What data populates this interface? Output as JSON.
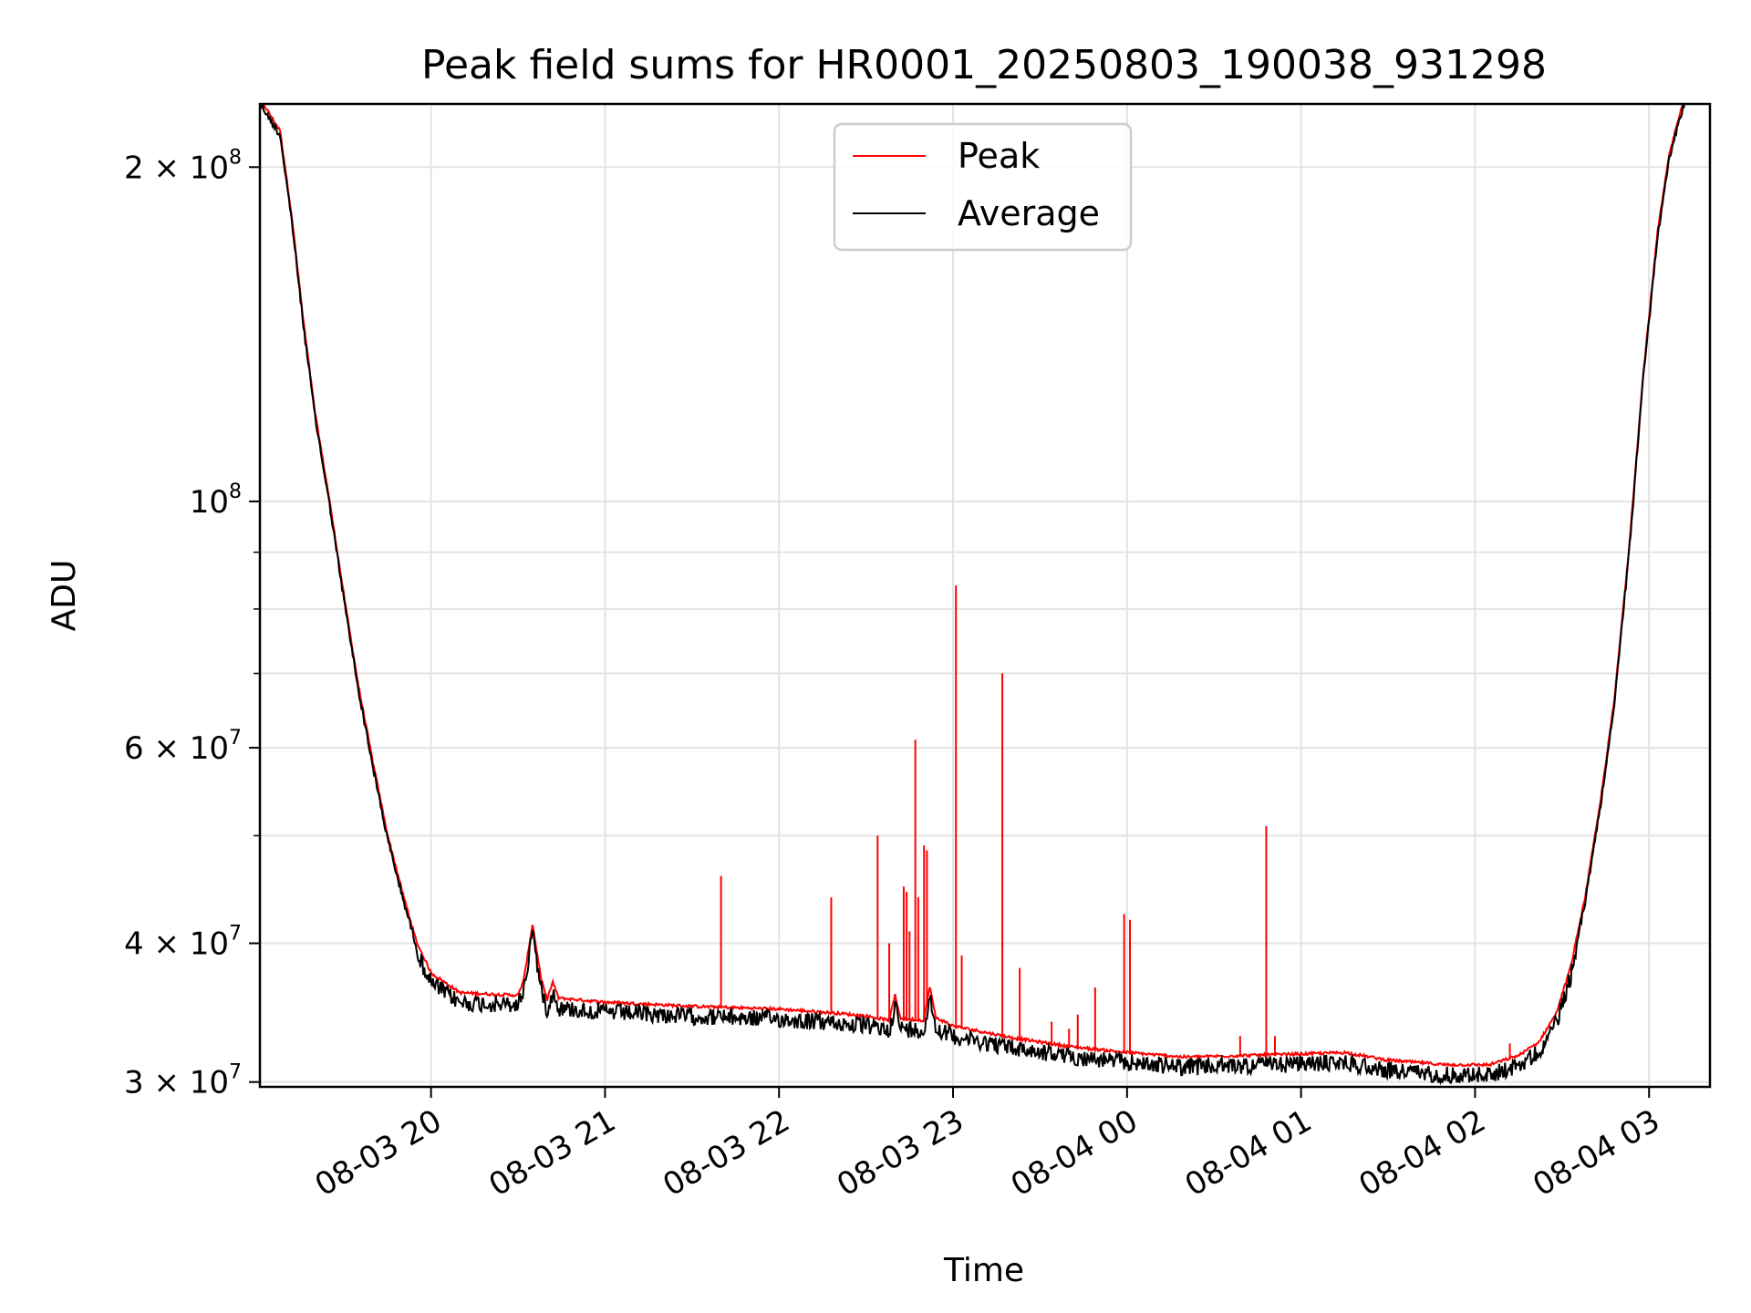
{
  "chart_data": {
    "type": "line",
    "title": "Peak field sums for HR0001_20250803_190038_931298",
    "xlabel": "Time",
    "ylabel": "ADU",
    "yscale": "log",
    "x_range": [
      "2025-08-03 19:01",
      "2025-08-04 03:21"
    ],
    "ylim": [
      29700000,
      228000000
    ],
    "grid": true,
    "legend_position": "top-center",
    "x_ticks": [
      {
        "value": "2025-08-03 20:00",
        "label": "08-03 20"
      },
      {
        "value": "2025-08-03 21:00",
        "label": "08-03 21"
      },
      {
        "value": "2025-08-03 22:00",
        "label": "08-03 22"
      },
      {
        "value": "2025-08-03 23:00",
        "label": "08-03 23"
      },
      {
        "value": "2025-08-04 00:00",
        "label": "08-04 00"
      },
      {
        "value": "2025-08-04 01:00",
        "label": "08-04 01"
      },
      {
        "value": "2025-08-04 02:00",
        "label": "08-04 02"
      },
      {
        "value": "2025-08-04 03:00",
        "label": "08-04 03"
      }
    ],
    "y_ticks": [
      {
        "value": 30000000,
        "label": "3 × 10^7",
        "base": "3 × 10",
        "exp": "7"
      },
      {
        "value": 40000000,
        "label": "4 × 10^7",
        "base": "4 × 10",
        "exp": "7"
      },
      {
        "value": 60000000,
        "label": "6 × 10^7",
        "base": "6 × 10",
        "exp": "7"
      },
      {
        "value": 100000000,
        "label": "10^8",
        "base": "10",
        "exp": "8"
      },
      {
        "value": 200000000,
        "label": "2 × 10^8",
        "base": "2 × 10",
        "exp": "8"
      }
    ],
    "y_minor_ticks": [
      50000000,
      70000000,
      80000000,
      90000000
    ],
    "series": [
      {
        "name": "Average",
        "color": "#000000",
        "points": [
          [
            "2025-08-03 19:01",
            230000000
          ],
          [
            "2025-08-03 19:08",
            215000000
          ],
          [
            "2025-08-03 19:12",
            180000000
          ],
          [
            "2025-08-03 19:16",
            145000000
          ],
          [
            "2025-08-03 19:20",
            120000000
          ],
          [
            "2025-08-03 19:25",
            100000000
          ],
          [
            "2025-08-03 19:30",
            82000000
          ],
          [
            "2025-08-03 19:35",
            68000000
          ],
          [
            "2025-08-03 19:40",
            58000000
          ],
          [
            "2025-08-03 19:45",
            50000000
          ],
          [
            "2025-08-03 19:50",
            44500000
          ],
          [
            "2025-08-03 19:55",
            40000000
          ],
          [
            "2025-08-03 20:00",
            37500000
          ],
          [
            "2025-08-03 20:10",
            36000000
          ],
          [
            "2025-08-03 20:30",
            35800000
          ],
          [
            "2025-08-03 20:32",
            37000000
          ],
          [
            "2025-08-03 20:35",
            41500000
          ],
          [
            "2025-08-03 20:38",
            37000000
          ],
          [
            "2025-08-03 20:40",
            35500000
          ],
          [
            "2025-08-03 20:42",
            36800000
          ],
          [
            "2025-08-03 20:44",
            35600000
          ],
          [
            "2025-08-03 21:00",
            35300000
          ],
          [
            "2025-08-03 21:30",
            35000000
          ],
          [
            "2025-08-03 22:00",
            34800000
          ],
          [
            "2025-08-03 22:20",
            34500000
          ],
          [
            "2025-08-03 22:30",
            34300000
          ],
          [
            "2025-08-03 22:38",
            34000000
          ],
          [
            "2025-08-03 22:40",
            35800000
          ],
          [
            "2025-08-03 22:42",
            34100000
          ],
          [
            "2025-08-03 22:50",
            34000000
          ],
          [
            "2025-08-03 22:52",
            36500000
          ],
          [
            "2025-08-03 22:54",
            34200000
          ],
          [
            "2025-08-03 23:00",
            33600000
          ],
          [
            "2025-08-03 23:20",
            32800000
          ],
          [
            "2025-08-03 23:40",
            32200000
          ],
          [
            "2025-08-04 00:00",
            31800000
          ],
          [
            "2025-08-04 00:20",
            31500000
          ],
          [
            "2025-08-04 00:40",
            31600000
          ],
          [
            "2025-08-04 01:00",
            31700000
          ],
          [
            "2025-08-04 01:15",
            31800000
          ],
          [
            "2025-08-04 01:30",
            31300000
          ],
          [
            "2025-08-04 01:50",
            31000000
          ],
          [
            "2025-08-04 02:05",
            31000000
          ],
          [
            "2025-08-04 02:15",
            31600000
          ],
          [
            "2025-08-04 02:22",
            32500000
          ],
          [
            "2025-08-04 02:28",
            34500000
          ],
          [
            "2025-08-04 02:33",
            38000000
          ],
          [
            "2025-08-04 02:38",
            44000000
          ],
          [
            "2025-08-04 02:43",
            53000000
          ],
          [
            "2025-08-04 02:48",
            66000000
          ],
          [
            "2025-08-04 02:53",
            90000000
          ],
          [
            "2025-08-04 02:58",
            130000000
          ],
          [
            "2025-08-04 03:03",
            175000000
          ],
          [
            "2025-08-04 03:07",
            205000000
          ],
          [
            "2025-08-04 03:11",
            225000000
          ],
          [
            "2025-08-04 03:15",
            240000000
          ],
          [
            "2025-08-04 03:21",
            240000000
          ]
        ]
      },
      {
        "name": "Peak",
        "color": "#ff0000",
        "spikes": [
          [
            "2025-08-03 21:40",
            46000000
          ],
          [
            "2025-08-03 22:18",
            44000000
          ],
          [
            "2025-08-03 22:34",
            50000000
          ],
          [
            "2025-08-03 22:38",
            40000000
          ],
          [
            "2025-08-03 22:43",
            45000000
          ],
          [
            "2025-08-03 22:44",
            44500000
          ],
          [
            "2025-08-03 22:45",
            41000000
          ],
          [
            "2025-08-03 22:47",
            61000000
          ],
          [
            "2025-08-03 22:48",
            44000000
          ],
          [
            "2025-08-03 22:50",
            49000000
          ],
          [
            "2025-08-03 22:51",
            48500000
          ],
          [
            "2025-08-03 23:01",
            84000000
          ],
          [
            "2025-08-03 23:03",
            39000000
          ],
          [
            "2025-08-03 23:17",
            70000000
          ],
          [
            "2025-08-03 23:23",
            38000000
          ],
          [
            "2025-08-03 23:34",
            34000000
          ],
          [
            "2025-08-03 23:40",
            33500000
          ],
          [
            "2025-08-03 23:43",
            34500000
          ],
          [
            "2025-08-03 23:49",
            36500000
          ],
          [
            "2025-08-03 23:59",
            42500000
          ],
          [
            "2025-08-04 00:01",
            42000000
          ],
          [
            "2025-08-04 00:39",
            33000000
          ],
          [
            "2025-08-04 00:48",
            51000000
          ],
          [
            "2025-08-04 00:51",
            33000000
          ],
          [
            "2025-08-04 02:12",
            32500000
          ]
        ]
      }
    ]
  }
}
